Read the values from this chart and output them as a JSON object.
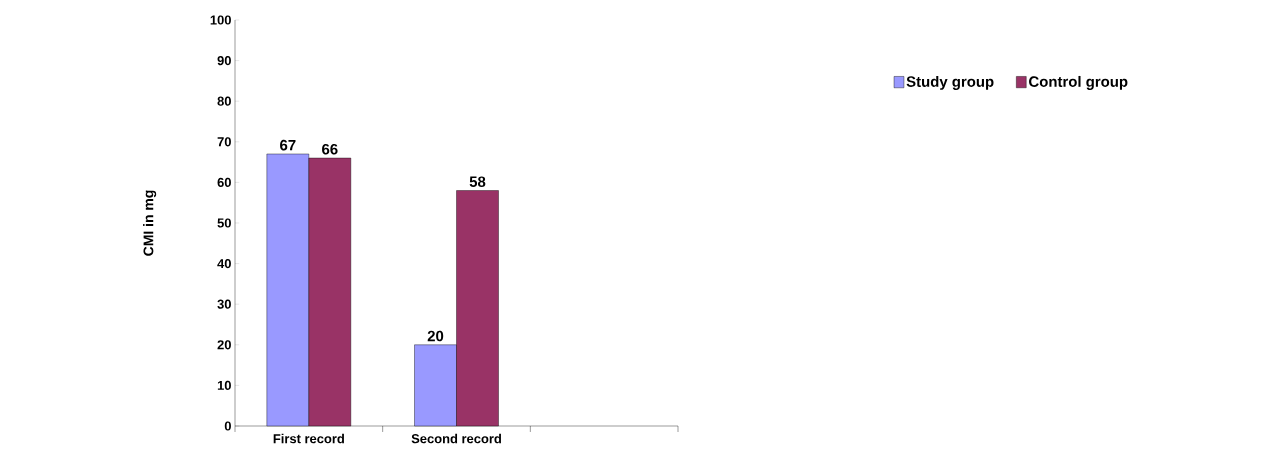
{
  "chart_data": {
    "type": "bar",
    "ylabel": "CMI in mg",
    "categories": [
      "First record",
      "Second record",
      null
    ],
    "series": [
      {
        "name": "Study group",
        "color": "#9999ff",
        "values": [
          67,
          20,
          null
        ]
      },
      {
        "name": "Control group",
        "color": "#993366",
        "values": [
          66,
          58,
          null
        ]
      }
    ],
    "ylim": [
      0,
      100
    ],
    "yticks": [
      0,
      10,
      20,
      30,
      40,
      50,
      60,
      70,
      80,
      90,
      100
    ],
    "data_labels": true,
    "legend": "top right",
    "grid": false
  }
}
